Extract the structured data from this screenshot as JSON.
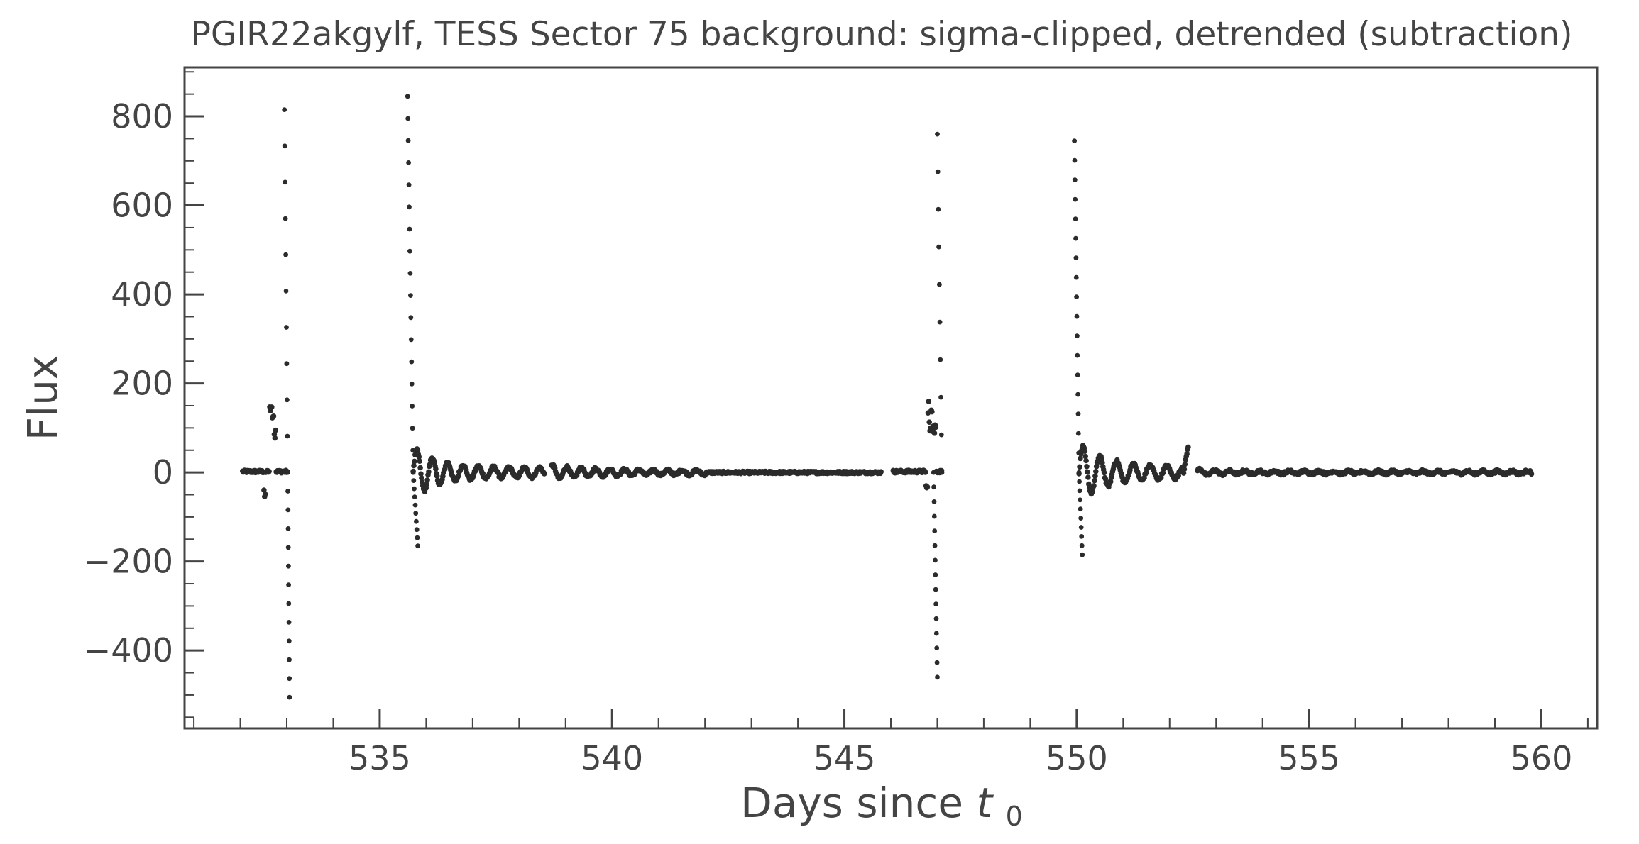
{
  "chart_data": {
    "type": "scatter",
    "title": "PGIR22akgylf, TESS Sector 75 background: sigma-clipped, detrended (subtraction)",
    "xlabel": "Days since",
    "xlabel_math": "t",
    "xlabel_sub": "0",
    "ylabel": "Flux",
    "xlim": [
      530.8,
      561.2
    ],
    "ylim": [
      -575,
      910
    ],
    "x_ticks": [
      535,
      540,
      545,
      550,
      555,
      560
    ],
    "x_tick_labels": [
      "535",
      "540",
      "545",
      "550",
      "555",
      "560"
    ],
    "y_ticks": [
      -400,
      -200,
      0,
      200,
      400,
      600,
      800
    ],
    "y_tick_labels": [
      "−400",
      "−200",
      "0",
      "200",
      "400",
      "600",
      "800"
    ],
    "grid": false,
    "marker_color": "#2b2b2b",
    "series": [
      {
        "segments": [
          {
            "start": 532.05,
            "end": 533.02,
            "cadence": 0.0139,
            "description": "quiet stretch then ringing spike near 532.7",
            "base": 2,
            "events": [
              {
                "t": 532.5,
                "dur": 0.05,
                "lvl": -55
              },
              {
                "t": 532.62,
                "dur": 0.12,
                "lvl": 170
              },
              {
                "t": 532.72,
                "dur": 0.05,
                "lvl": 140
              }
            ]
          },
          {
            "start": 535.72,
            "end": 538.55,
            "cadence": 0.0139,
            "osc": {
              "amp0": 165,
              "decay": 0.55,
              "floor": 30,
              "period": 0.33,
              "phase": 0
            }
          },
          {
            "start": 538.7,
            "end": 542.05,
            "cadence": 0.0139,
            "osc": {
              "amp0": 45,
              "decay": 1.2,
              "floor": 10,
              "period": 0.31,
              "phase": 1.2
            }
          },
          {
            "start": 542.05,
            "end": 545.8,
            "cadence": 0.0139,
            "base": 0,
            "noise": 5
          },
          {
            "start": 546.05,
            "end": 547.1,
            "cadence": 0.0139,
            "base": 2,
            "events": [
              {
                "t": 546.75,
                "dur": 0.05,
                "lvl": -40
              },
              {
                "t": 546.8,
                "dur": 0.13,
                "lvl": 165
              },
              {
                "t": 546.93,
                "dur": 0.05,
                "lvl": 120
              }
            ]
          },
          {
            "start": 550.05,
            "end": 552.4,
            "cadence": 0.0139,
            "osc": {
              "amp0": 185,
              "decay": 0.6,
              "floor": 35,
              "period": 0.36,
              "phase": 0
            },
            "end_rise": 60
          },
          {
            "start": 552.6,
            "end": 559.8,
            "cadence": 0.0139,
            "osc": {
              "amp0": 22,
              "decay": 0.45,
              "floor": 8,
              "period": 0.32,
              "phase": 0.5
            }
          }
        ],
        "sparse_spikes": [
          {
            "x0": 532.95,
            "x1": 533.02,
            "y0": 815,
            "y1": 0,
            "n": 11
          },
          {
            "x0": 533.02,
            "x1": 533.06,
            "y0": 0,
            "y1": -505,
            "n": 13
          },
          {
            "x0": 535.6,
            "x1": 535.72,
            "y0": 845,
            "y1": 0,
            "n": 18
          },
          {
            "x0": 535.72,
            "x1": 535.82,
            "y0": 0,
            "y1": -165,
            "n": 10
          },
          {
            "x0": 547.0,
            "x1": 547.1,
            "y0": 760,
            "y1": 0,
            "n": 10
          },
          {
            "x0": 546.92,
            "x1": 547.0,
            "y0": 0,
            "y1": -460,
            "n": 15
          },
          {
            "x0": 549.95,
            "x1": 550.05,
            "y0": 745,
            "y1": 0,
            "n": 18
          },
          {
            "x0": 550.05,
            "x1": 550.12,
            "y0": 0,
            "y1": -185,
            "n": 10
          }
        ]
      }
    ]
  }
}
